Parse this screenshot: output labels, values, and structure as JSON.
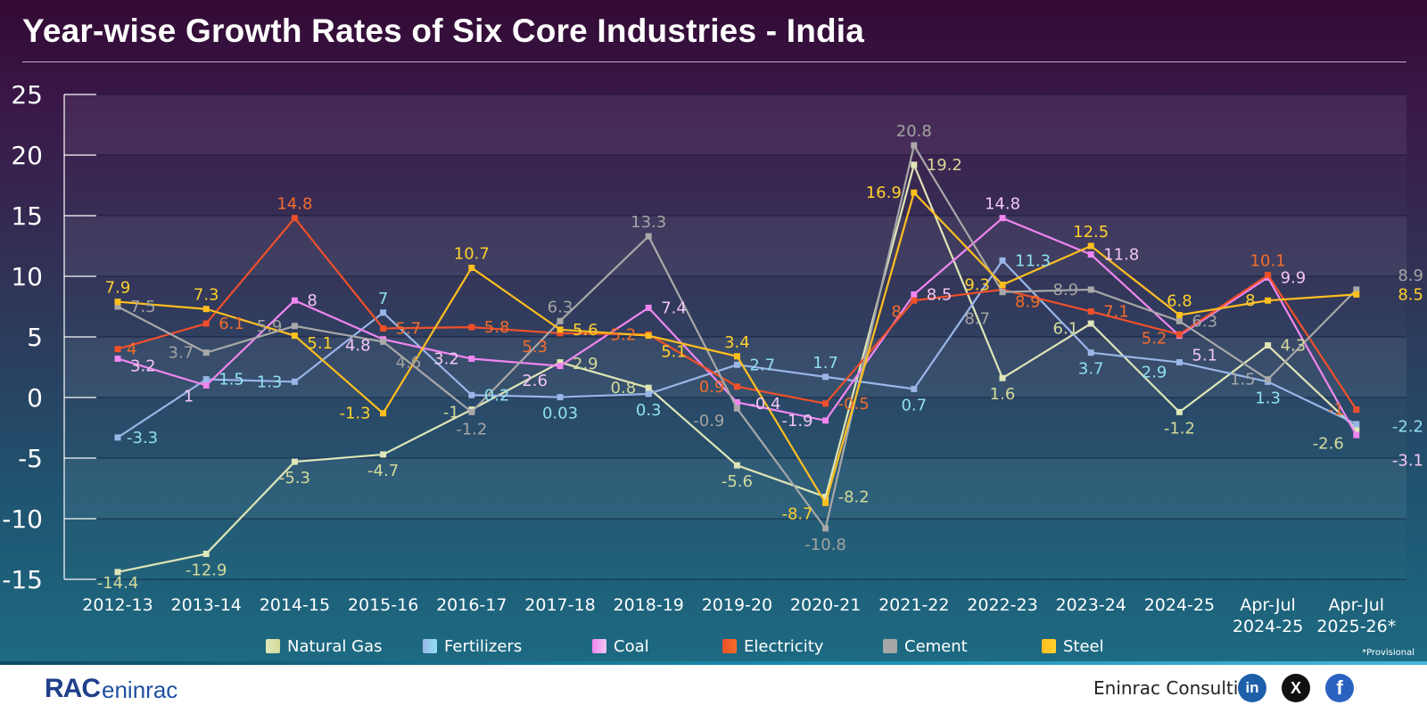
{
  "title": "Year-wise Growth Rates of Six Core Industries - India",
  "footnote": "*Provisional",
  "footer": {
    "logo_mark": "RAC",
    "logo_text": "eninrac",
    "company": "Eninrac Consulting",
    "social": [
      {
        "name": "linkedin",
        "label": "in",
        "color": "#1e5faa"
      },
      {
        "name": "x",
        "label": "X",
        "color": "#111111"
      },
      {
        "name": "facebook",
        "label": "f",
        "color": "#2b62c2"
      }
    ]
  },
  "chart_data": {
    "type": "line",
    "title": "Year-wise Growth Rates of Six Core Industries - India",
    "xlabel": "",
    "ylabel": "",
    "ylim": [
      -15,
      25
    ],
    "yticks": [
      25,
      20,
      15,
      10,
      5,
      0,
      -5,
      -10,
      -15
    ],
    "grid": true,
    "legend_position": "bottom",
    "categories": [
      "2012-13",
      "2013-14",
      "2014-15",
      "2015-16",
      "2016-17",
      "2017-18",
      "2018-19",
      "2019-20",
      "2020-21",
      "2021-22",
      "2022-23",
      "2023-24",
      "2024-25",
      "Apr-Jul 2024-25",
      "Apr-Jul 2025-26*"
    ],
    "series": [
      {
        "name": "Natural Gas",
        "color": "#dfe6b8",
        "label_color": "#d4db9a",
        "values": [
          -14.4,
          -12.9,
          -5.3,
          -4.7,
          -1,
          2.9,
          0.8,
          -5.6,
          -8.2,
          19.2,
          1.6,
          6.1,
          -1.2,
          4.3,
          -2.6
        ]
      },
      {
        "name": "Fertilizers",
        "color": "#9ab6e8",
        "label_color": "#8fe0f0",
        "values": [
          -3.3,
          1.5,
          1.3,
          7,
          0.2,
          0.03,
          0.3,
          2.7,
          1.7,
          0.7,
          11.3,
          3.7,
          2.9,
          1.3,
          -2.2
        ]
      },
      {
        "name": "Coal",
        "color": "#f086f0",
        "label_color": "#f3c6f3",
        "values": [
          3.2,
          1,
          8,
          4.8,
          3.2,
          2.6,
          7.4,
          -0.4,
          -1.9,
          8.5,
          14.8,
          11.8,
          5.1,
          9.9,
          -3.1
        ]
      },
      {
        "name": "Electricity",
        "color": "#f0502a",
        "label_color": "#f26d2b",
        "values": [
          4,
          6.1,
          14.8,
          5.7,
          5.8,
          5.3,
          5.2,
          0.9,
          -0.5,
          8,
          8.9,
          7.1,
          5.2,
          10.1,
          -1
        ]
      },
      {
        "name": "Cement",
        "color": "#a8a8a8",
        "label_color": "#a4a4a4",
        "values": [
          7.5,
          3.7,
          5.9,
          4.6,
          -1.2,
          6.3,
          13.3,
          -0.9,
          -10.8,
          20.8,
          8.7,
          8.9,
          6.3,
          1.5,
          8.9
        ]
      },
      {
        "name": "Steel",
        "color": "#ffbf1f",
        "label_color": "#ffd02c",
        "values": [
          7.9,
          7.3,
          5.1,
          -1.3,
          10.7,
          5.6,
          5.1,
          3.4,
          -8.7,
          16.9,
          9.3,
          12.5,
          6.8,
          8,
          8.5
        ]
      }
    ]
  }
}
